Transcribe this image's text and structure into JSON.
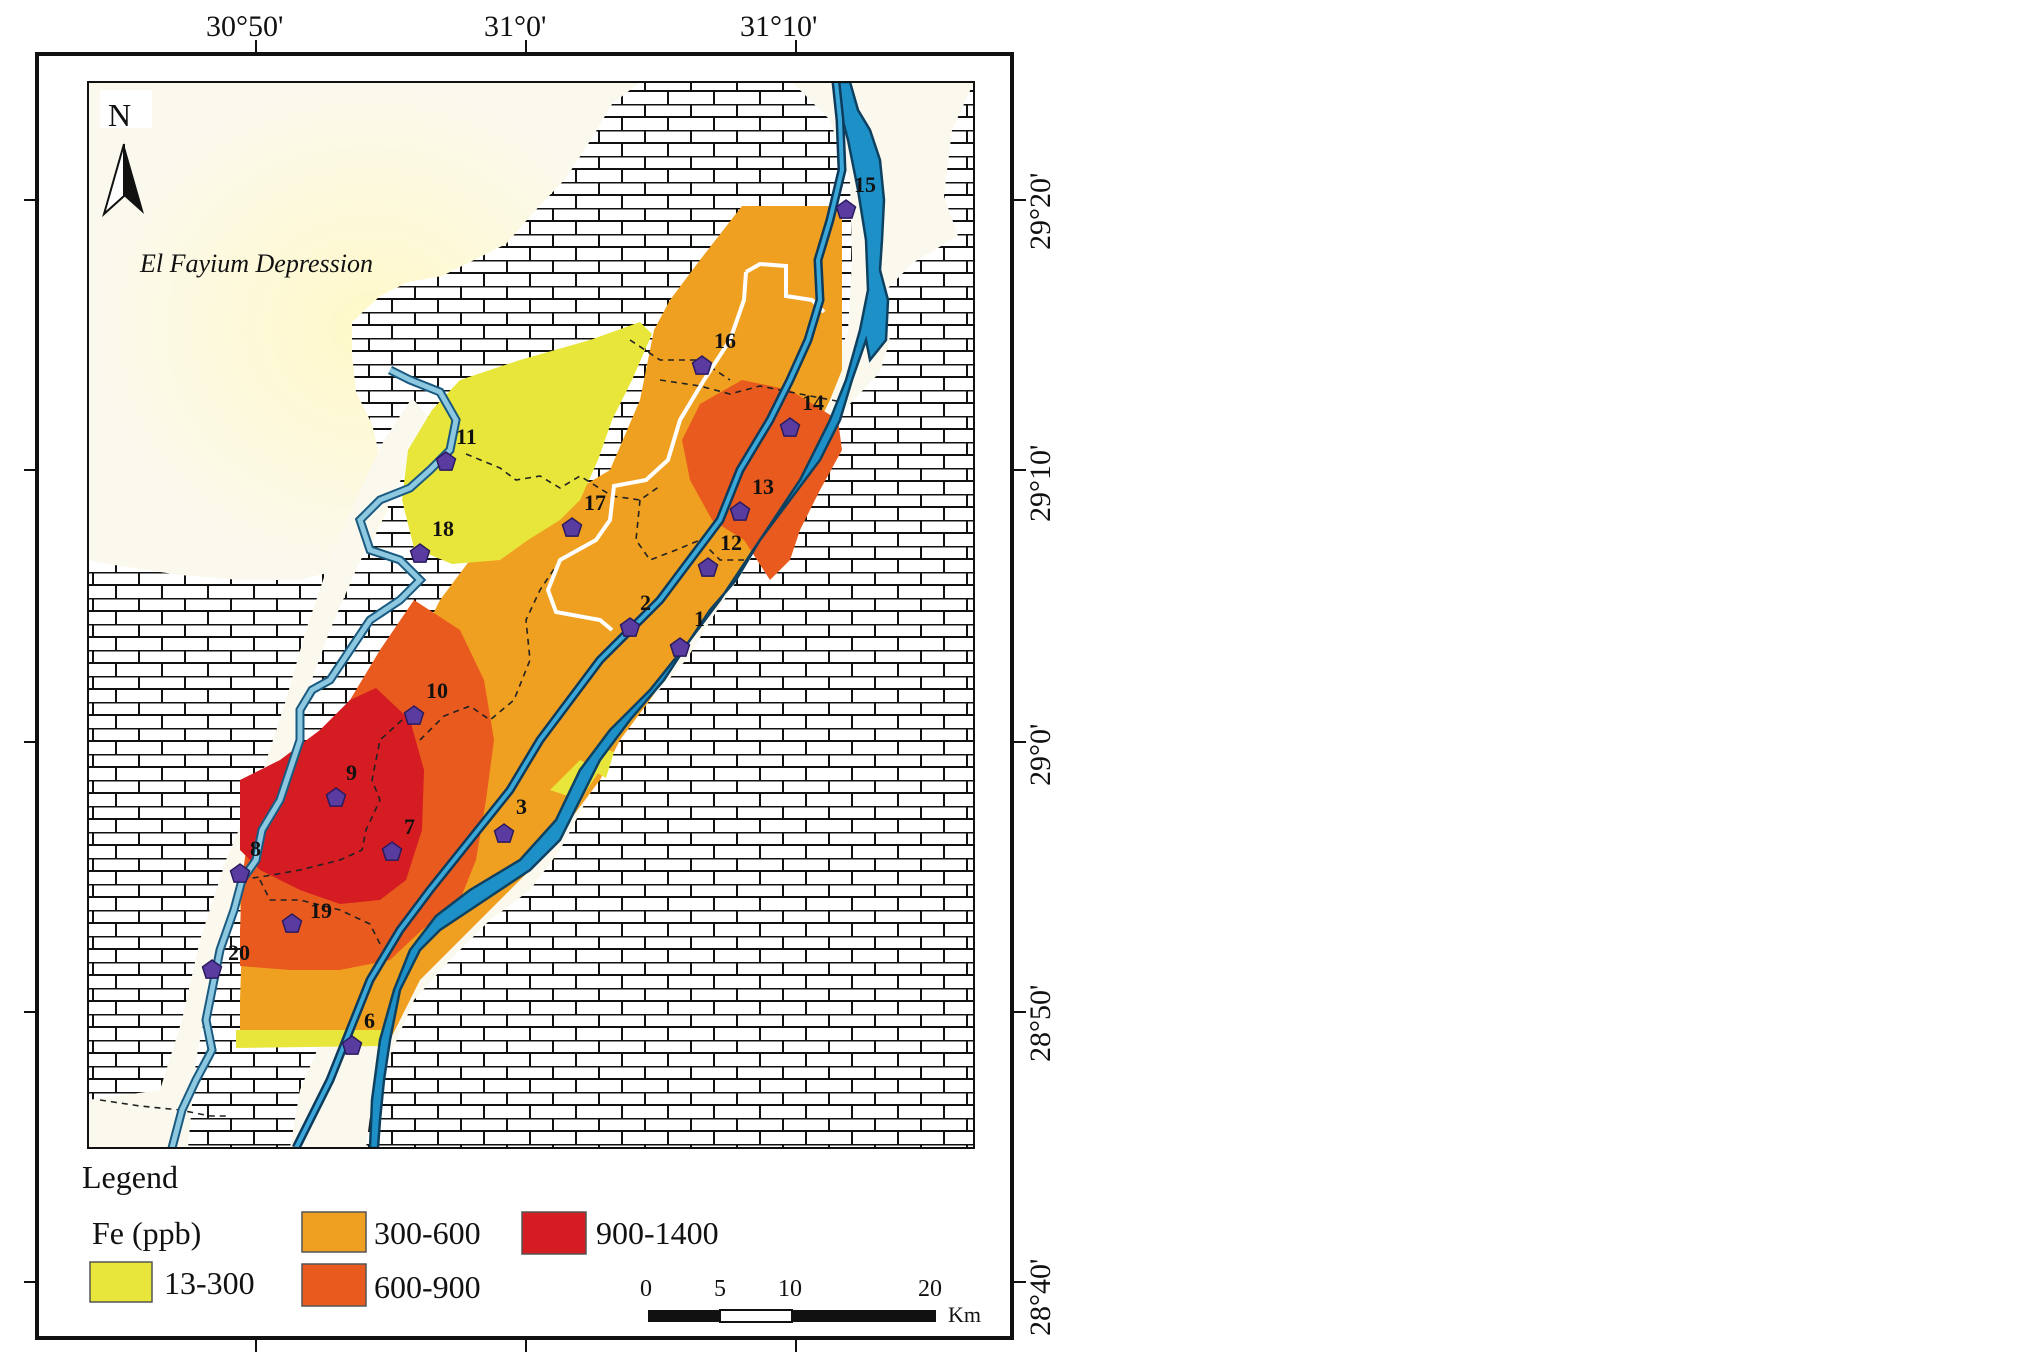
{
  "map": {
    "north_label": "N",
    "region_label": "El Fayium Depression",
    "lon_ticks": [
      "30°50'",
      "31°0'",
      "31°10'"
    ],
    "lat_ticks": [
      "29°20'",
      "29°10'",
      "29°0'",
      "28°50'",
      "28°40'"
    ]
  },
  "stations": [
    "1",
    "2",
    "3",
    "6",
    "7",
    "8",
    "9",
    "10",
    "11",
    "12",
    "13",
    "14",
    "15",
    "16",
    "17",
    "18",
    "19",
    "20"
  ],
  "legend": {
    "title": "Legend",
    "parameter": "Fe (ppb)",
    "classes": [
      {
        "label": "13-300",
        "color": "#e8e63a"
      },
      {
        "label": "300-600",
        "color": "#f0a020"
      },
      {
        "label": "600-900",
        "color": "#e85a1e"
      },
      {
        "label": "900-1400",
        "color": "#d41c22"
      }
    ]
  },
  "scale_bar": {
    "ticks": [
      "0",
      "5",
      "10",
      "20"
    ],
    "unit": "Km"
  },
  "colors": {
    "land": "#fbf9ee",
    "river": "#1e90c8",
    "canal": "#8cc8e0",
    "station": "#5a3ca0"
  }
}
